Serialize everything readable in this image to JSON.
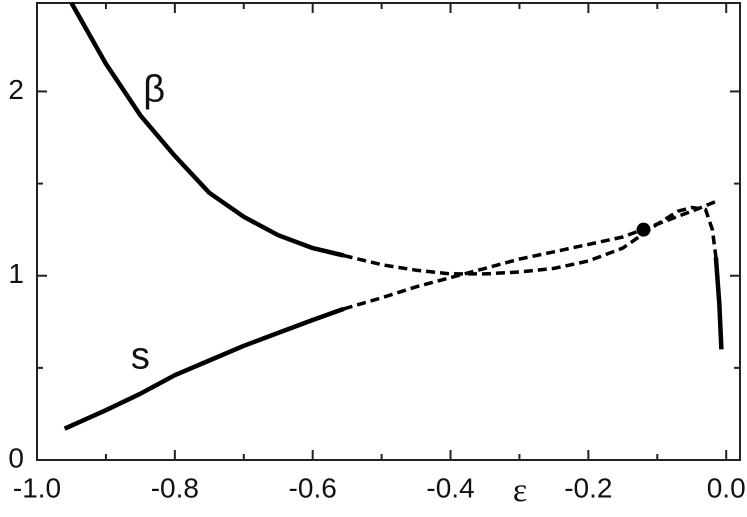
{
  "chart_data": {
    "type": "line",
    "x_label": "ε",
    "annotations": [
      {
        "text": "β",
        "x": -0.83,
        "y": 2.0
      },
      {
        "text": "s",
        "x": -0.85,
        "y": 0.55
      }
    ],
    "xlim": [
      -1.0,
      0.02
    ],
    "ylim": [
      0,
      2.48
    ],
    "xticks": [
      {
        "value": -1.0,
        "label": "-1.0"
      },
      -0.8,
      -0.6,
      -0.4,
      -0.2,
      {
        "value": 0,
        "label": "0.0"
      }
    ],
    "yticks": [
      0,
      1,
      2
    ],
    "xminorticks": [
      -0.9,
      -0.7,
      -0.5,
      -0.3,
      -0.1
    ],
    "yminorticks": [
      0.5,
      1.5
    ],
    "series": [
      {
        "style": "solid",
        "color": "#000000",
        "x": [
          -0.95,
          -0.9,
          -0.85,
          -0.8,
          -0.75,
          -0.7,
          -0.65,
          -0.6,
          -0.555
        ],
        "values": [
          2.48,
          2.15,
          1.87,
          1.65,
          1.45,
          1.32,
          1.22,
          1.15,
          1.11
        ]
      },
      {
        "style": "dashed",
        "color": "#000000",
        "x": [
          -0.555,
          -0.5,
          -0.45,
          -0.4,
          -0.35,
          -0.3,
          -0.25,
          -0.2,
          -0.15,
          -0.1,
          -0.07,
          -0.05,
          -0.03,
          -0.02,
          -0.015
        ],
        "values": [
          1.11,
          1.06,
          1.03,
          1.01,
          1.01,
          1.02,
          1.04,
          1.08,
          1.15,
          1.28,
          1.35,
          1.37,
          1.36,
          1.25,
          1.1
        ]
      },
      {
        "style": "solid",
        "color": "#000000",
        "x": [
          -0.015,
          -0.01,
          -0.007
        ],
        "values": [
          1.1,
          0.85,
          0.6
        ]
      },
      {
        "style": "solid",
        "color": "#000000",
        "x": [
          -0.96,
          -0.9,
          -0.85,
          -0.8,
          -0.75,
          -0.7,
          -0.65,
          -0.6,
          -0.555
        ],
        "values": [
          0.17,
          0.27,
          0.36,
          0.46,
          0.54,
          0.62,
          0.69,
          0.76,
          0.82
        ]
      },
      {
        "style": "dashed",
        "color": "#000000",
        "x": [
          -0.555,
          -0.5,
          -0.45,
          -0.4,
          -0.35,
          -0.3,
          -0.25,
          -0.2,
          -0.15,
          -0.1,
          -0.05,
          -0.01
        ],
        "values": [
          0.82,
          0.88,
          0.94,
          0.99,
          1.04,
          1.09,
          1.13,
          1.17,
          1.21,
          1.28,
          1.35,
          1.41
        ]
      },
      {
        "style": "marker",
        "color": "#000000",
        "x": [
          -0.12
        ],
        "values": [
          1.25
        ]
      }
    ]
  }
}
